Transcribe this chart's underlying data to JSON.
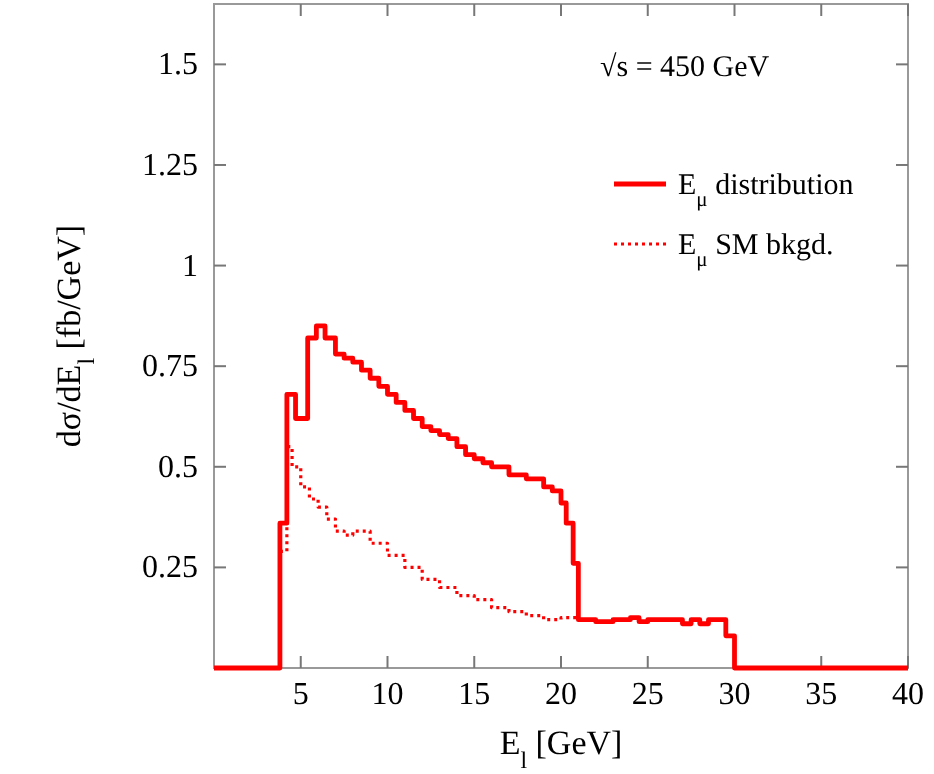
{
  "chart_data": {
    "type": "step",
    "xlabel": "E$_{l}$ [GeV]",
    "ylabel": "dσ/dE$_{l}$ [fb/GeV]",
    "annotations": [
      "√s = 450 GeV"
    ],
    "xlim": [
      0,
      40
    ],
    "ylim": [
      0,
      1.65
    ],
    "xticks": [
      5,
      10,
      15,
      20,
      25,
      30,
      35,
      40
    ],
    "yticks": [
      0.25,
      0.5,
      0.75,
      1,
      1.25,
      1.5
    ],
    "legend": "top right",
    "grid": false,
    "series": [
      {
        "name": "E$_{μ}$ distribution",
        "color": "#ff0000",
        "line_style": "solid",
        "x": [
          0,
          3.8,
          4.2,
          4.7,
          5.4,
          5.9,
          6.4,
          7,
          7.5,
          8,
          8.5,
          9,
          9.5,
          10,
          10.5,
          11,
          11.5,
          12,
          12.5,
          13,
          13.5,
          14,
          14.5,
          15,
          15.5,
          16,
          17,
          18,
          19,
          19.5,
          20,
          20.3,
          20.7,
          21,
          22,
          23,
          24,
          24.5,
          25,
          27,
          27.5,
          28,
          28.5,
          29.5,
          30,
          40
        ],
        "values": [
          0,
          0.36,
          0.68,
          0.62,
          0.82,
          0.85,
          0.82,
          0.78,
          0.77,
          0.76,
          0.74,
          0.72,
          0.7,
          0.68,
          0.66,
          0.64,
          0.62,
          0.6,
          0.59,
          0.58,
          0.57,
          0.55,
          0.53,
          0.52,
          0.51,
          0.5,
          0.48,
          0.47,
          0.45,
          0.44,
          0.41,
          0.36,
          0.26,
          0.12,
          0.115,
          0.12,
          0.125,
          0.115,
          0.12,
          0.11,
          0.12,
          0.11,
          0.12,
          0.08,
          0,
          0
        ]
      },
      {
        "name": "E$_{μ}$ SM bkgd.",
        "color": "#ff0000",
        "line_style": "dotted",
        "x": [
          3.8,
          4.2,
          4.5,
          5,
          5.5,
          6,
          6.5,
          7,
          7.5,
          8,
          9,
          10,
          11,
          12,
          13,
          14,
          15,
          16,
          17,
          18,
          19,
          20,
          21
        ],
        "values": [
          0.29,
          0.55,
          0.5,
          0.45,
          0.42,
          0.4,
          0.37,
          0.34,
          0.33,
          0.34,
          0.31,
          0.28,
          0.25,
          0.22,
          0.2,
          0.18,
          0.17,
          0.15,
          0.14,
          0.13,
          0.12,
          0.125,
          0.12
        ]
      }
    ]
  }
}
